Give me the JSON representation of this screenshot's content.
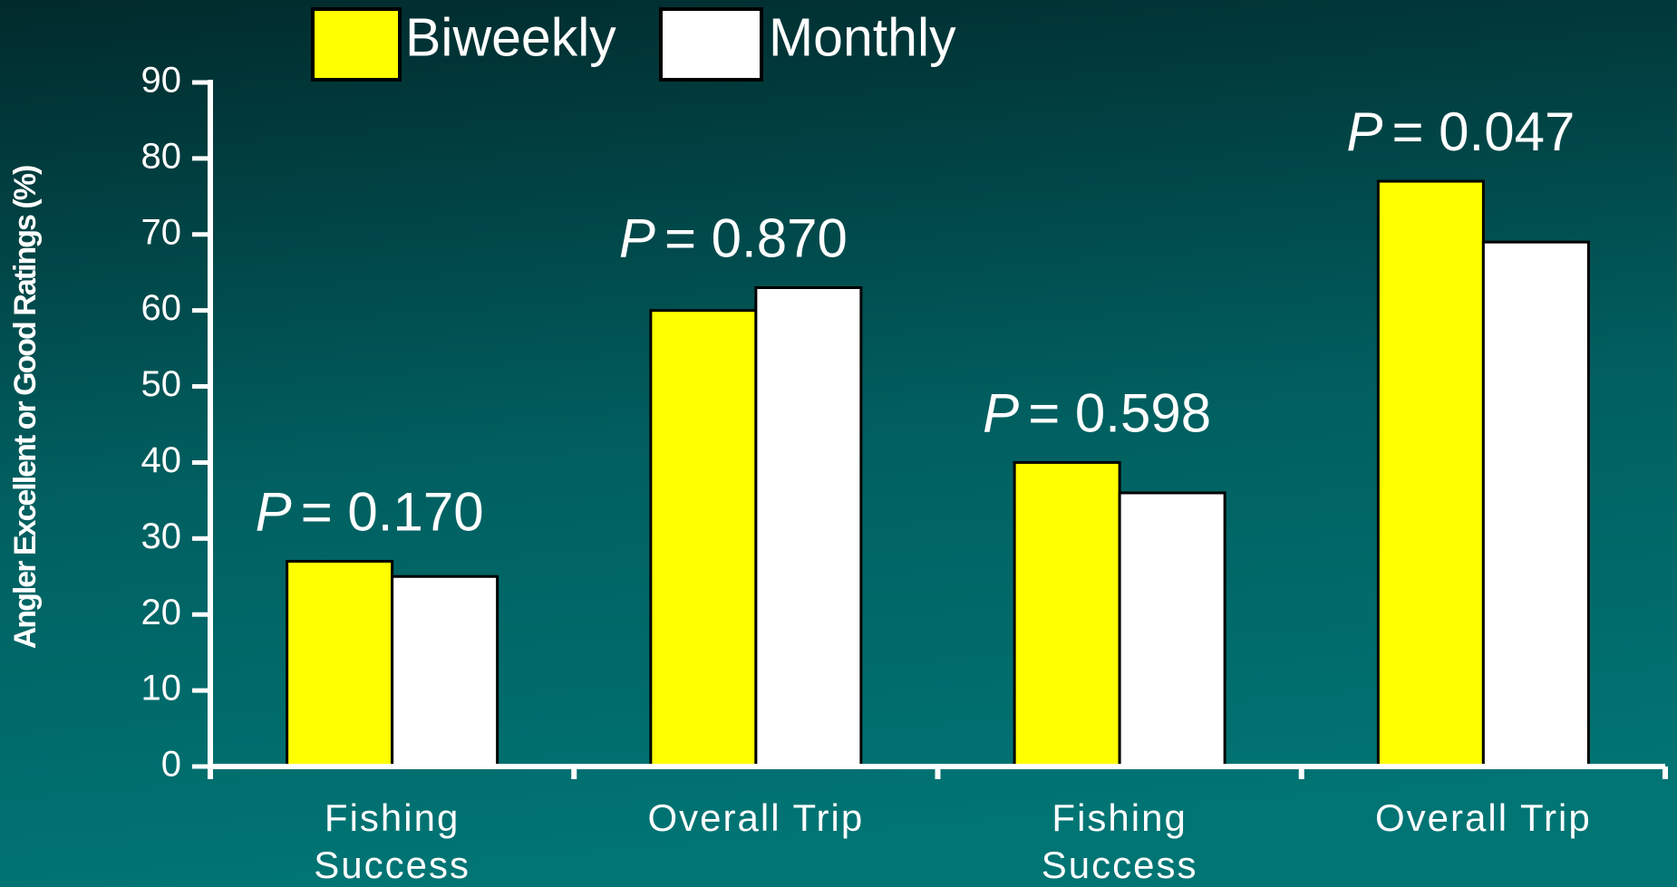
{
  "chart_data": {
    "type": "bar",
    "y_label": "Angler Excellent or Good Ratings (%)",
    "categories": [
      [
        "Fishing",
        "Success"
      ],
      [
        "Overall Trip"
      ],
      [
        "Fishing",
        "Success"
      ],
      [
        "Overall Trip"
      ]
    ],
    "series": [
      {
        "name": "Biweekly",
        "color": "#ffff00",
        "values": [
          27,
          60,
          40,
          77
        ]
      },
      {
        "name": "Monthly",
        "color": "#ffffff",
        "values": [
          25,
          63,
          36,
          69
        ]
      }
    ],
    "annotations": [
      {
        "italic": "P",
        "text": "= 0.170"
      },
      {
        "italic": "P",
        "text": "= 0.870"
      },
      {
        "italic": "P",
        "text": "= 0.598"
      },
      {
        "italic": "P",
        "text": "= 0.047"
      }
    ],
    "ylim": [
      0,
      90
    ],
    "yticks": [
      0,
      10,
      20,
      30,
      40,
      50,
      60,
      70,
      80,
      90
    ]
  }
}
